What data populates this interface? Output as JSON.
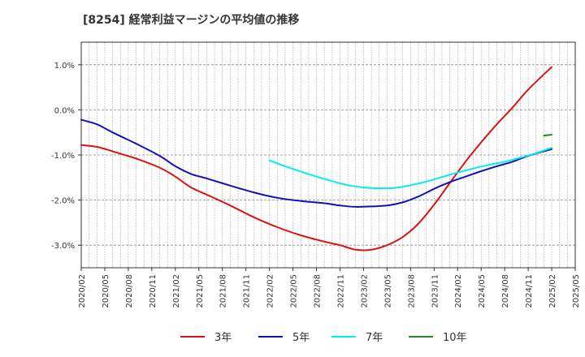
{
  "chart_data": {
    "type": "line",
    "title": "[8254]  経常利益マージンの平均値の推移",
    "xlabel": "",
    "ylabel": "",
    "ylim": [
      -3.5,
      1.5
    ],
    "yticks": [
      1.0,
      0.0,
      -1.0,
      -2.0,
      -3.0
    ],
    "ytick_labels": [
      "1.0%",
      "0.0%",
      "-1.0%",
      "-2.0%",
      "-3.0%"
    ],
    "x_tick_labels": [
      "2020/02",
      "2020/05",
      "2020/08",
      "2020/11",
      "2021/02",
      "2021/05",
      "2021/08",
      "2021/11",
      "2022/02",
      "2022/05",
      "2022/08",
      "2022/11",
      "2023/02",
      "2023/05",
      "2023/08",
      "2023/11",
      "2024/02",
      "2024/05",
      "2024/08",
      "2024/11",
      "2025/02",
      "2025/05"
    ],
    "grid": true,
    "legend_position": "bottom",
    "series": [
      {
        "name": "3年",
        "color": "#dd1111",
        "x": [
          "2020/02",
          "2020/04",
          "2020/06",
          "2020/09",
          "2020/12",
          "2021/02",
          "2021/04",
          "2021/06",
          "2021/09",
          "2021/12",
          "2022/03",
          "2022/06",
          "2022/09",
          "2022/11",
          "2023/01",
          "2023/03",
          "2023/05",
          "2023/07",
          "2023/09",
          "2023/11",
          "2024/01",
          "2024/03",
          "2024/05",
          "2024/07",
          "2024/09",
          "2024/11",
          "2025/02"
        ],
        "values": [
          -0.78,
          -0.82,
          -0.92,
          -1.08,
          -1.28,
          -1.48,
          -1.72,
          -1.88,
          -2.12,
          -2.38,
          -2.6,
          -2.78,
          -2.92,
          -3.0,
          -3.1,
          -3.1,
          -3.0,
          -2.82,
          -2.52,
          -2.1,
          -1.62,
          -1.15,
          -0.72,
          -0.32,
          0.05,
          0.45,
          0.95
        ]
      },
      {
        "name": "5年",
        "color": "#1111bb",
        "x": [
          "2020/02",
          "2020/04",
          "2020/06",
          "2020/09",
          "2020/12",
          "2021/02",
          "2021/04",
          "2021/06",
          "2021/09",
          "2021/12",
          "2022/03",
          "2022/06",
          "2022/09",
          "2022/11",
          "2023/01",
          "2023/03",
          "2023/05",
          "2023/07",
          "2023/09",
          "2023/11",
          "2024/01",
          "2024/03",
          "2024/05",
          "2024/07",
          "2024/09",
          "2024/11",
          "2025/02"
        ],
        "values": [
          -0.22,
          -0.32,
          -0.5,
          -0.75,
          -1.02,
          -1.25,
          -1.42,
          -1.52,
          -1.68,
          -1.83,
          -1.95,
          -2.02,
          -2.07,
          -2.12,
          -2.15,
          -2.14,
          -2.12,
          -2.05,
          -1.92,
          -1.75,
          -1.6,
          -1.48,
          -1.36,
          -1.25,
          -1.15,
          -1.02,
          -0.87
        ]
      },
      {
        "name": "7年",
        "color": "#00eeee",
        "x": [
          "2022/02",
          "2022/04",
          "2022/06",
          "2022/08",
          "2022/10",
          "2022/12",
          "2023/02",
          "2023/04",
          "2023/06",
          "2023/08",
          "2023/10",
          "2023/12",
          "2024/02",
          "2024/04",
          "2024/06",
          "2024/08",
          "2024/10",
          "2024/12",
          "2025/02"
        ],
        "values": [
          -1.12,
          -1.25,
          -1.37,
          -1.48,
          -1.58,
          -1.67,
          -1.72,
          -1.74,
          -1.73,
          -1.67,
          -1.59,
          -1.49,
          -1.39,
          -1.3,
          -1.22,
          -1.15,
          -1.06,
          -0.96,
          -0.84
        ]
      },
      {
        "name": "10年",
        "color": "#228822",
        "x": [
          "2025/01",
          "2025/02"
        ],
        "values": [
          -0.57,
          -0.55
        ]
      }
    ]
  }
}
